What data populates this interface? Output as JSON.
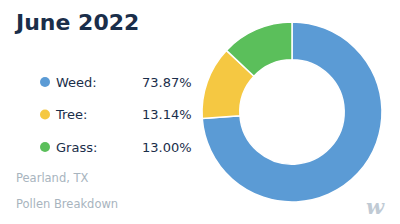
{
  "chart_data": {
    "type": "pie",
    "title": "June 2022",
    "subtitle": [
      "Pearland, TX",
      "Pollen Breakdown"
    ],
    "annotations": [
      "w"
    ],
    "categories": [
      "Weed:",
      "Tree:",
      "Grass:"
    ],
    "values": [
      73.87,
      13.14,
      13.0
    ],
    "value_labels": [
      "73.87%",
      "13.14%",
      "13.00%"
    ],
    "colors": [
      "#5B9BD5",
      "#F5C842",
      "#5BBF5B"
    ],
    "legend": "left"
  }
}
